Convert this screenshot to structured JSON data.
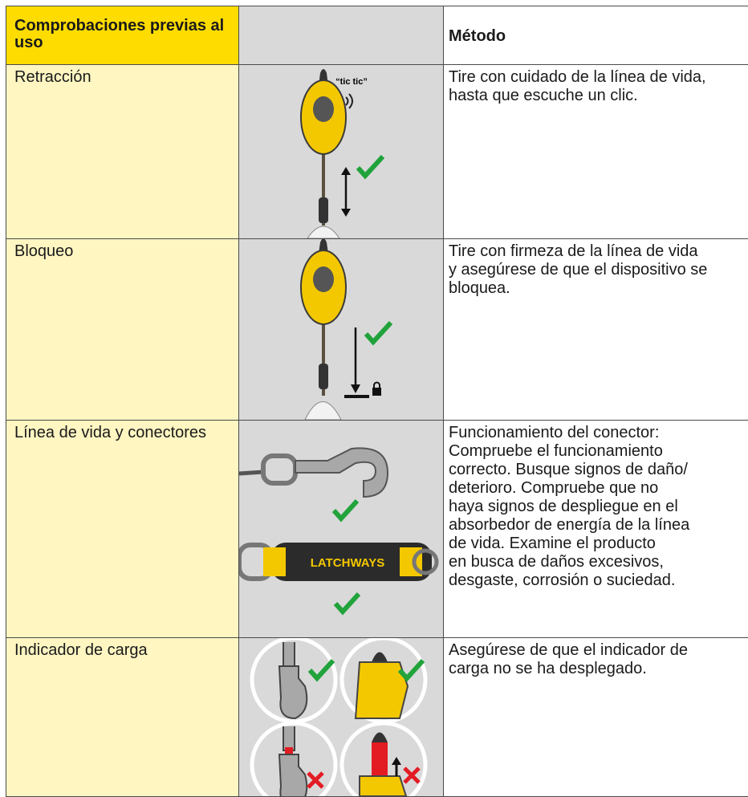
{
  "header": {
    "check": "Comprobaciones previas al uso",
    "method": "Método"
  },
  "rows": [
    {
      "check": "Retracción",
      "method": [
        "Tire con cuidado de la línea de vida,",
        "hasta que escuche un clic."
      ],
      "sound": "“tic tic”"
    },
    {
      "check": "Bloqueo",
      "method": [
        "Tire con firmeza de la línea de vida",
        "y asegúrese de que el dispositivo se",
        "bloquea."
      ]
    },
    {
      "check": "Línea de vida y conectores",
      "method": [
        "Funcionamiento del conector:",
        "Compruebe el funcionamiento",
        "correcto. Busque signos de daño/",
        "deterioro. Compruebe que no",
        "haya signos de despliegue en el",
        "absorbedor de energía de la línea",
        "de vida. Examine el producto",
        "en busca de daños excesivos,",
        "desgaste, corrosión o suciedad."
      ],
      "brand": "LATCHWAYS"
    },
    {
      "check": "Indicador de carga",
      "method": [
        "Asegúrese de que el indicador de",
        "carga no se ha desplegado."
      ]
    }
  ]
}
